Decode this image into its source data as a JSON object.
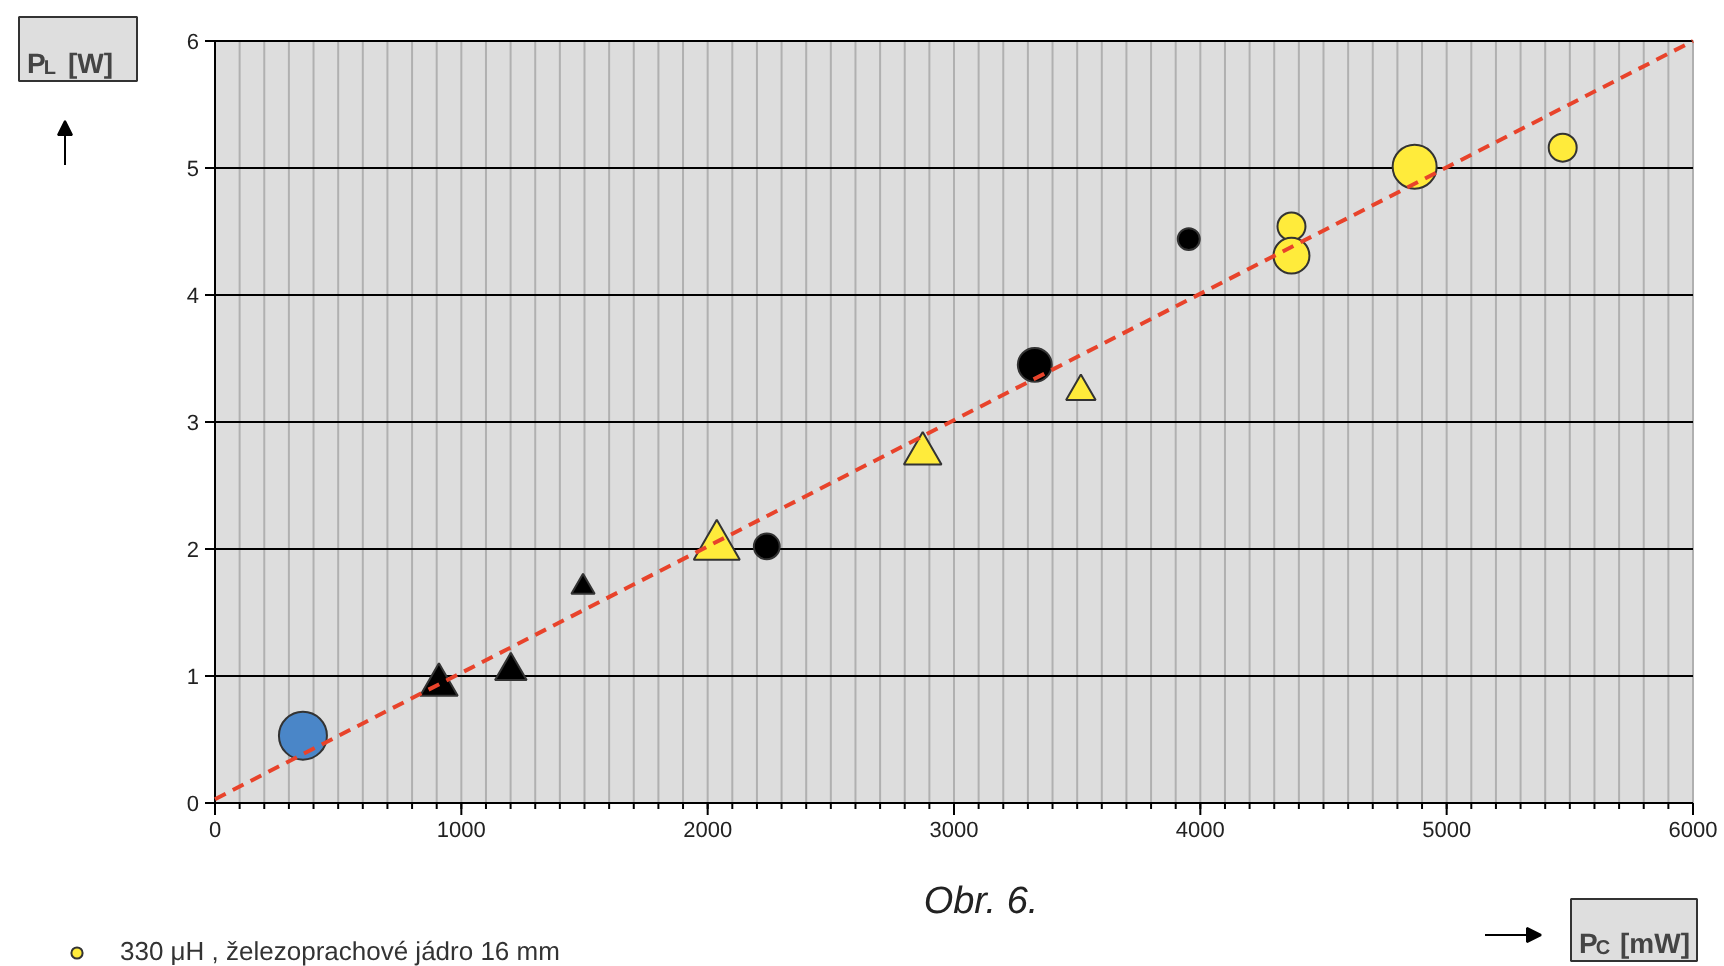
{
  "chart_data": {
    "type": "bubble",
    "title": "Obr. 6.",
    "xlabel": "P$_{C}$ [mW]",
    "ylabel": "P$_{L}$ [W]",
    "xlim": [
      0,
      6000
    ],
    "ylim": [
      0,
      6
    ],
    "xticks": [
      0,
      1000,
      2000,
      3000,
      4000,
      5000,
      6000
    ],
    "yticks": [
      0,
      1,
      2,
      3,
      4,
      5,
      6
    ],
    "grid": true,
    "legend": "bottom left",
    "series": [
      {
        "name": "330 μH , železoprachové jádro 16 mm",
        "color": "#ffeb3b",
        "marker": "circle",
        "x": [
          4370,
          4370,
          4870,
          5471
        ],
        "values": [
          4.54,
          4.31,
          5.01,
          5.16
        ],
        "sizes": [
          0.34,
          0.56,
          0.84,
          0.34
        ]
      },
      {
        "color": "#000000",
        "marker": "circle",
        "x": [
          2240,
          3328,
          3953
        ],
        "values": [
          2.02,
          3.45,
          4.44
        ],
        "sizes": [
          0.29,
          0.5,
          0.21
        ]
      },
      {
        "color": "#ffeb3b",
        "marker": "triangle",
        "x": [
          2037,
          2873,
          3515
        ],
        "values": [
          2.02,
          2.75,
          3.24
        ],
        "sizes": [
          0.51,
          0.34,
          0.21
        ]
      },
      {
        "color": "#000000",
        "marker": "triangle",
        "x": [
          909,
          1201,
          1494
        ],
        "values": [
          0.93,
          1.04,
          1.7
        ],
        "sizes": [
          0.34,
          0.24,
          0.13
        ]
      },
      {
        "color": "#4a86c8",
        "marker": "circle",
        "x": [
          357
        ],
        "values": [
          0.53
        ],
        "sizes": [
          1
        ]
      },
      {
        "type": "line",
        "color": "#e8432b",
        "line_style": "dashed",
        "marker": "none",
        "x": [
          0,
          6000
        ],
        "values": [
          0.03,
          6.0
        ]
      }
    ]
  }
}
